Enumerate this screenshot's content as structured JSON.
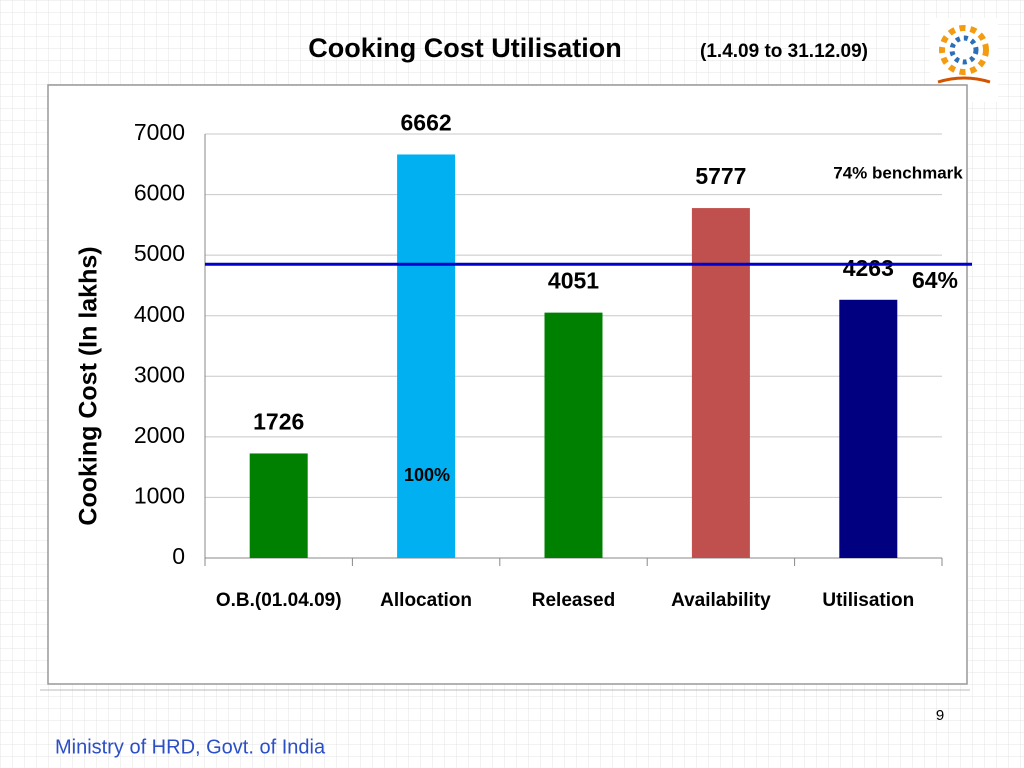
{
  "chart_data": {
    "type": "bar",
    "title": "Cooking Cost Utilisation",
    "subtitle": "(1.4.09 to 31.12.09)",
    "y_label": "Cooking Cost (In lakhs)",
    "categories": [
      "O.B.(01.04.09)",
      "Allocation",
      "Released",
      "Availability",
      "Utilisation"
    ],
    "values": [
      1726,
      6662,
      4051,
      5777,
      4263
    ],
    "colors": [
      "#008000",
      "#00b0f0",
      "#008000",
      "#c0504d",
      "#000080"
    ],
    "ylim": [
      0,
      7000
    ],
    "yticks": [
      0,
      1000,
      2000,
      3000,
      4000,
      5000,
      6000,
      7000
    ],
    "grid": true,
    "benchmark_value": 4850,
    "benchmark_color": "#0000cc",
    "annotations": [
      "74% benchmark",
      "100%",
      "64%"
    ]
  },
  "footer": {
    "page_number": "9",
    "organization": "Ministry of HRD, Govt. of India"
  }
}
